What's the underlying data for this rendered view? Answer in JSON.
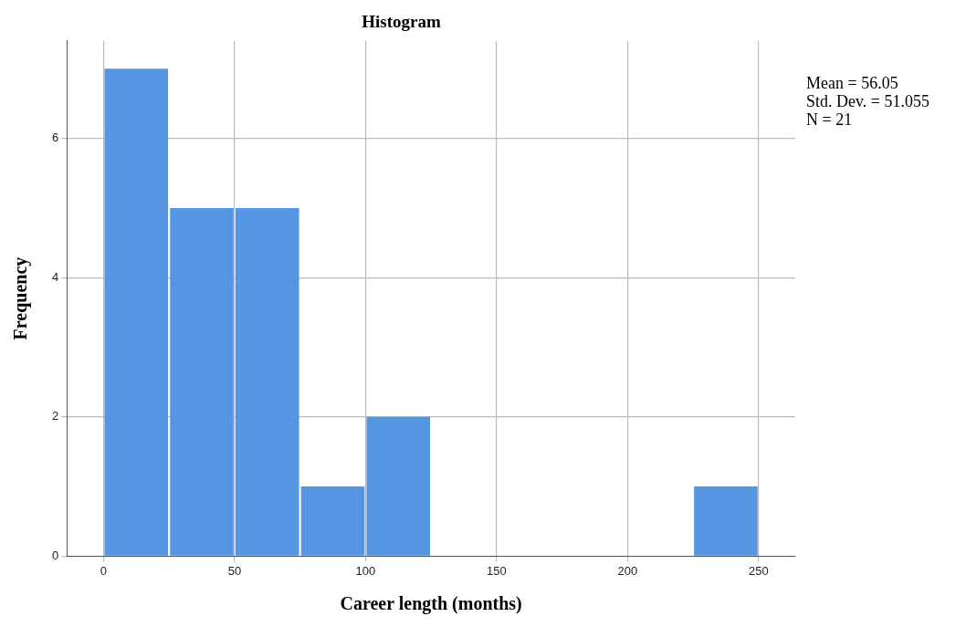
{
  "chart_data": {
    "type": "histogram",
    "title": "Histogram",
    "xlabel": "Career length (months)",
    "ylabel": "Frequency",
    "bins": [
      0,
      25,
      50,
      75,
      100,
      125,
      150,
      175,
      200,
      225,
      250
    ],
    "values": [
      7,
      5,
      5,
      1,
      2,
      0,
      0,
      0,
      0,
      1
    ],
    "color": "#5595e2",
    "xlim": [
      -14,
      264
    ],
    "xticks": [
      0,
      50,
      100,
      150,
      200,
      250
    ],
    "ylim": [
      0,
      7.4
    ],
    "yticks": [
      0,
      2,
      4,
      6
    ],
    "grid": true,
    "legend": false,
    "annotations": [
      "Mean = 56.05",
      "Std. Dev. = 51.055",
      "N = 21"
    ]
  }
}
